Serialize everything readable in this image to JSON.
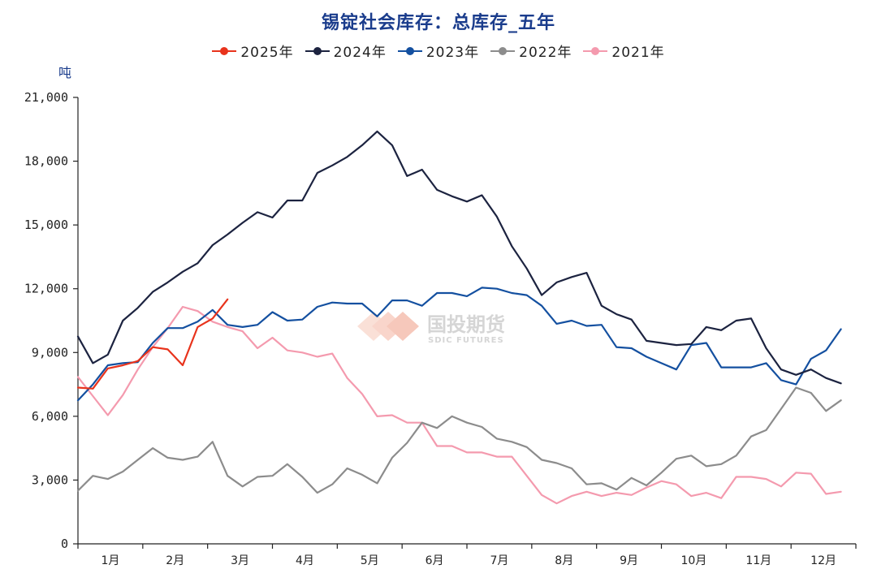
{
  "chart_data": {
    "type": "line",
    "title": "锡锭社会库存：总库存_五年",
    "ylabel": "吨",
    "ylim": [
      0,
      21000
    ],
    "yticks": [
      "0",
      "3,000",
      "6,000",
      "9,000",
      "12,000",
      "15,000",
      "18,000",
      "21,000"
    ],
    "ytick_values": [
      0,
      3000,
      6000,
      9000,
      12000,
      15000,
      18000,
      21000
    ],
    "months": [
      "1月",
      "2月",
      "3月",
      "4月",
      "5月",
      "6月",
      "7月",
      "8月",
      "9月",
      "10月",
      "11月",
      "12月"
    ],
    "x_unit": "week of year",
    "xlim": [
      1,
      53
    ],
    "grid": false,
    "legend_position": "top-center",
    "watermark": "国投期货 SDIC FUTURES",
    "series": [
      {
        "name": "2025年",
        "color": "#e8331c",
        "x": [
          1,
          2,
          3,
          4,
          5,
          6,
          7,
          8,
          9,
          10,
          11,
          12
        ],
        "values": [
          7350,
          7300,
          8250,
          8400,
          8600,
          9250,
          9150,
          8400,
          10200,
          10600,
          11500,
          null
        ]
      },
      {
        "name": "2024年",
        "color": "#1c2340",
        "x": [
          1,
          2,
          3,
          4,
          5,
          6,
          7,
          8,
          9,
          10,
          11,
          12,
          13,
          14,
          15,
          16,
          17,
          18,
          19,
          20,
          21,
          22,
          23,
          24,
          25,
          26,
          27,
          28,
          29,
          30,
          31,
          32,
          33,
          34,
          35,
          36,
          37,
          38,
          39,
          40,
          41,
          42,
          43,
          44,
          45,
          46,
          47,
          48,
          49,
          50,
          51,
          52
        ],
        "values": [
          9750,
          8500,
          8900,
          10500,
          11100,
          11850,
          12300,
          12800,
          13200,
          14050,
          14550,
          15100,
          15600,
          15350,
          16150,
          16150,
          17450,
          17800,
          18200,
          18750,
          19400,
          18750,
          17300,
          17600,
          16650,
          16350,
          16100,
          16400,
          15400,
          14000,
          12950,
          11700,
          12300,
          12550,
          12750,
          11200,
          10800,
          10550,
          9550,
          9450,
          9350,
          9400,
          10200,
          10050,
          10500,
          10600,
          9200,
          8200,
          7950,
          8200,
          7800,
          7550
        ]
      },
      {
        "name": "2023年",
        "color": "#1450a0",
        "x": [
          1,
          2,
          3,
          4,
          5,
          6,
          7,
          8,
          9,
          10,
          11,
          12,
          13,
          14,
          15,
          16,
          17,
          18,
          19,
          20,
          21,
          22,
          23,
          24,
          25,
          26,
          27,
          28,
          29,
          30,
          31,
          32,
          33,
          34,
          35,
          36,
          37,
          38,
          39,
          40,
          41,
          42,
          43,
          44,
          45,
          46,
          47,
          48,
          49,
          50,
          51,
          52,
          53
        ],
        "values": [
          6750,
          7500,
          8400,
          8500,
          8550,
          9450,
          10150,
          10150,
          10450,
          11000,
          10300,
          10200,
          10300,
          10900,
          10500,
          10550,
          11150,
          11350,
          11300,
          11300,
          10700,
          11450,
          11450,
          11200,
          11800,
          11800,
          11650,
          12050,
          12000,
          11800,
          11700,
          11200,
          10350,
          10500,
          10250,
          10300,
          9250,
          9200,
          8800,
          8500,
          8200,
          9350,
          9450,
          8300,
          8300,
          8300,
          8500,
          7700,
          7500,
          8700,
          9100,
          10100,
          null
        ]
      },
      {
        "name": "2022年",
        "color": "#8c8c8c",
        "x": [
          1,
          2,
          3,
          4,
          5,
          6,
          7,
          8,
          9,
          10,
          11,
          12,
          13,
          14,
          15,
          16,
          17,
          18,
          19,
          20,
          21,
          22,
          23,
          24,
          25,
          26,
          27,
          28,
          29,
          30,
          31,
          32,
          33,
          34,
          35,
          36,
          37,
          38,
          39,
          40,
          41,
          42,
          43,
          44,
          45,
          46,
          47,
          48,
          49,
          50,
          51,
          52
        ],
        "values": [
          2500,
          3200,
          3050,
          3400,
          3950,
          4500,
          4050,
          3950,
          4100,
          4800,
          3200,
          2700,
          3150,
          3200,
          3750,
          3150,
          2400,
          2800,
          3550,
          3250,
          2850,
          4050,
          4750,
          5700,
          5450,
          6000,
          5700,
          5500,
          4950,
          4800,
          4550,
          3950,
          3800,
          3550,
          2800,
          2850,
          2550,
          3100,
          2750,
          3350,
          4000,
          4150,
          3650,
          3750,
          4150,
          5050,
          5350,
          6350,
          7350,
          7100,
          6250,
          6750
        ]
      },
      {
        "name": "2021年",
        "color": "#f49aae",
        "x": [
          1,
          2,
          3,
          4,
          5,
          6,
          7,
          8,
          9,
          10,
          11,
          12,
          13,
          14,
          15,
          16,
          17,
          18,
          19,
          20,
          21,
          22,
          23,
          24,
          25,
          26,
          27,
          28,
          29,
          30,
          31,
          32,
          33,
          34,
          35,
          36,
          37,
          38,
          39,
          40,
          41,
          42,
          43,
          44,
          45,
          46,
          47,
          48,
          49,
          50,
          51,
          52,
          53
        ],
        "values": [
          7850,
          6950,
          6050,
          7000,
          8200,
          9250,
          10150,
          11150,
          10950,
          10450,
          10200,
          10000,
          9200,
          9700,
          9100,
          9000,
          8800,
          8950,
          7800,
          7050,
          6000,
          6050,
          5700,
          5700,
          4600,
          4600,
          4300,
          4300,
          4100,
          4100,
          3200,
          2300,
          1900,
          2250,
          2450,
          2250,
          2400,
          2300,
          2650,
          2950,
          2800,
          2250,
          2400,
          2150,
          3150,
          3150,
          3050,
          2700,
          3350,
          3300,
          2350,
          2450,
          null
        ]
      }
    ]
  }
}
